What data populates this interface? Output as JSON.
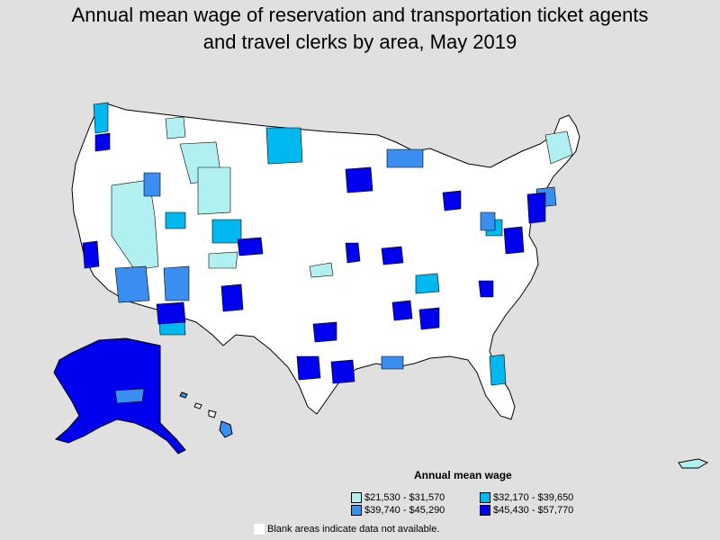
{
  "title_line1": "Annual mean wage of reservation and transportation ticket agents",
  "title_line2": "and travel clerks by area, May 2019",
  "legend": {
    "title": "Annual mean wage",
    "items": [
      {
        "label": "$21,530 - $31,570",
        "color": "#b0f0f0"
      },
      {
        "label": "$32,170 - $39,650",
        "color": "#00b8f0"
      },
      {
        "label": "$39,740 - $45,290",
        "color": "#3a8ef0"
      },
      {
        "label": "$45,430 - $57,770",
        "color": "#0000ee"
      }
    ]
  },
  "note": "Blank areas indicate data not available.",
  "colors": {
    "background": "#e0e0e0",
    "land": "#ffffff",
    "border": "#000000"
  }
}
